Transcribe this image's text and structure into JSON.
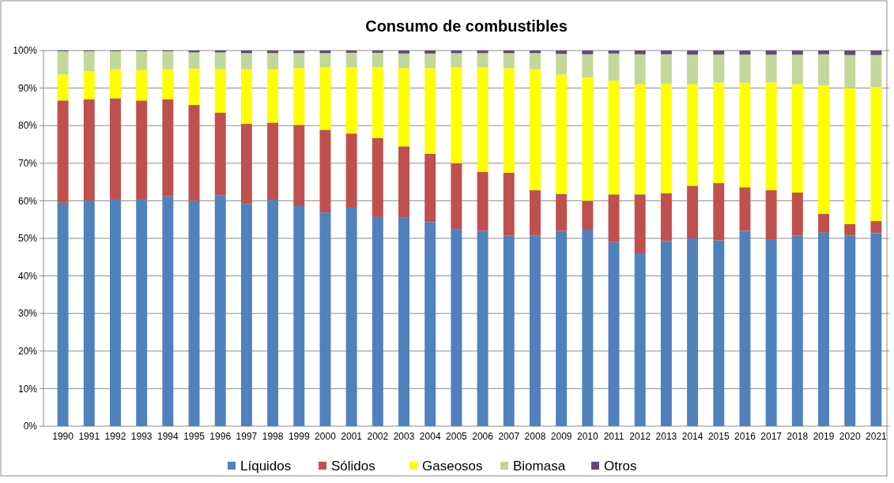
{
  "chart_data": {
    "type": "bar",
    "title": "Consumo de combustibles",
    "stacked": true,
    "grid": "y",
    "legend": "bottom",
    "categories": [
      "1990",
      "1991",
      "1992",
      "1993",
      "1994",
      "1995",
      "1996",
      "1997",
      "1998",
      "1999",
      "2000",
      "2001",
      "2002",
      "2003",
      "2004",
      "2005",
      "2006",
      "2007",
      "2008",
      "2009",
      "2010",
      "2011",
      "2012",
      "2013",
      "2014",
      "2015",
      "2016",
      "2017",
      "2018",
      "2019",
      "2020",
      "2021"
    ],
    "ylim": [
      0,
      100
    ],
    "yticks": [
      {
        "value": 0,
        "label": "0%"
      },
      {
        "value": 10,
        "label": "10%"
      },
      {
        "value": 20,
        "label": "20%"
      },
      {
        "value": 30,
        "label": "30%"
      },
      {
        "value": 40,
        "label": "40%"
      },
      {
        "value": 50,
        "label": "50%"
      },
      {
        "value": 60,
        "label": "60%"
      },
      {
        "value": 70,
        "label": "70%"
      },
      {
        "value": 80,
        "label": "80%"
      },
      {
        "value": 90,
        "label": "90%"
      },
      {
        "value": 100,
        "label": "100%"
      }
    ],
    "series": [
      {
        "name": "Líquidos",
        "color": "#4f81bd",
        "values": [
          59.5,
          60,
          60.3,
          60.5,
          61.2,
          60,
          61.5,
          59.2,
          60.3,
          58.6,
          56.9,
          58.2,
          55.7,
          55.5,
          54.3,
          52.5,
          52,
          50.7,
          50.7,
          52,
          52.3,
          49,
          46,
          49.3,
          50,
          49.5,
          52,
          49.6,
          50.7,
          51.5,
          50.7,
          51.4
        ]
      },
      {
        "name": "Sólidos",
        "color": "#c0504d",
        "values": [
          27.2,
          27,
          27,
          26.2,
          25.8,
          25.5,
          22,
          21.3,
          20.5,
          21.6,
          22,
          19.7,
          21,
          19,
          18.2,
          17.5,
          15.7,
          16.8,
          12.1,
          9.8,
          7.7,
          12.7,
          15.7,
          12.7,
          14,
          15.2,
          11.6,
          13.2,
          11.5,
          5,
          3.1,
          3.2
        ]
      },
      {
        "name": "Gaseosos",
        "color": "#ffff00",
        "values": [
          6.9,
          7.5,
          7.7,
          8.1,
          8,
          9.7,
          11.5,
          14.5,
          14.2,
          15.1,
          16.6,
          17.6,
          18.8,
          20.8,
          22.8,
          25.5,
          27.8,
          27.8,
          32.2,
          31.8,
          32.8,
          30.3,
          29.3,
          29.1,
          27,
          26.8,
          27.8,
          28.7,
          28.8,
          34.3,
          36.2,
          35.7
        ]
      },
      {
        "name": "Biomasa",
        "color": "#c4d79b",
        "values": [
          6.2,
          5.3,
          4.8,
          5,
          4.8,
          4.3,
          4.5,
          4.3,
          4.3,
          4,
          3.8,
          3.9,
          3.9,
          3.9,
          3.9,
          3.8,
          3.8,
          4,
          4.3,
          5.5,
          6.2,
          7.2,
          8,
          7.9,
          7.9,
          7.4,
          7.5,
          7.4,
          7.9,
          8.2,
          8.8,
          8.5
        ]
      },
      {
        "name": "Otros",
        "color": "#604a7b",
        "values": [
          0.2,
          0.2,
          0.2,
          0.2,
          0.2,
          0.5,
          0.5,
          0.7,
          0.7,
          0.7,
          0.7,
          0.6,
          0.6,
          0.8,
          0.8,
          0.7,
          0.7,
          0.7,
          0.7,
          0.9,
          1,
          0.8,
          1,
          1,
          1.1,
          1.1,
          1.1,
          1.1,
          1.1,
          1,
          1.2,
          1.2
        ]
      }
    ]
  }
}
